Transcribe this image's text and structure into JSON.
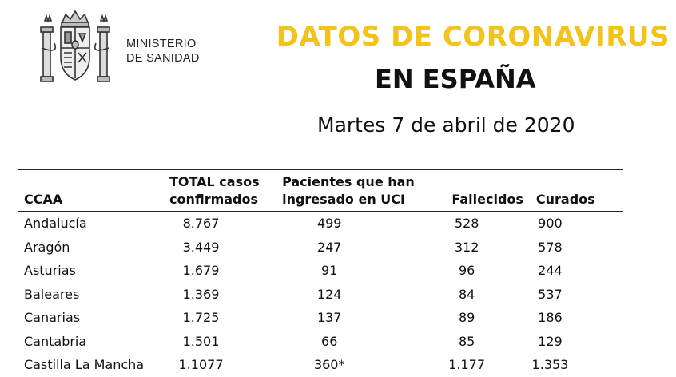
{
  "header": {
    "ministry_line1": "MINISTERIO",
    "ministry_line2": "DE SANIDAD",
    "title_line1": "DATOS DE CORONAVIRUS",
    "title_line2": "EN ESPAÑA",
    "date": "Martes 7 de abril de 2020",
    "colors": {
      "title_accent": "#f3c31a",
      "text": "#111111"
    },
    "logo_icon": "coat-of-arms-of-spain-icon"
  },
  "table": {
    "headers": {
      "ccaa": "CCAA",
      "total_line1": "TOTAL casos",
      "total_line2": "confirmados",
      "uci_line1": "Pacientes que han",
      "uci_line2": "ingresado en UCI",
      "fallecidos": "Fallecidos",
      "curados": "Curados"
    },
    "rows": [
      {
        "ccaa": "Andalucía",
        "total": "8.767",
        "uci": "499",
        "fallecidos": "528",
        "curados": "900"
      },
      {
        "ccaa": "Aragón",
        "total": "3.449",
        "uci": "247",
        "fallecidos": "312",
        "curados": "578"
      },
      {
        "ccaa": "Asturias",
        "total": "1.679",
        "uci": "91",
        "fallecidos": "96",
        "curados": "244"
      },
      {
        "ccaa": "Baleares",
        "total": "1.369",
        "uci": "124",
        "fallecidos": "84",
        "curados": "537"
      },
      {
        "ccaa": "Canarias",
        "total": "1.725",
        "uci": "137",
        "fallecidos": "89",
        "curados": "186"
      },
      {
        "ccaa": "Cantabria",
        "total": "1.501",
        "uci": "66",
        "fallecidos": "85",
        "curados": "129"
      },
      {
        "ccaa": "Castilla La Mancha",
        "total": "1.1077",
        "uci": "360*",
        "fallecidos": "1.177",
        "curados": "1.353"
      }
    ]
  }
}
